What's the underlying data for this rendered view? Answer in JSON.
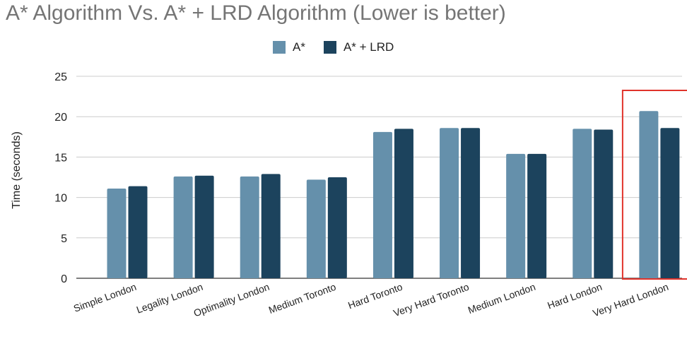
{
  "chart_data": {
    "type": "bar",
    "title": "A* Algorithm Vs. A* + LRD Algorithm (Lower is better)",
    "xlabel": "",
    "ylabel": "Time (seconds)",
    "ylim": [
      0,
      25
    ],
    "yticks": [
      0,
      5,
      10,
      15,
      20,
      25
    ],
    "grid": true,
    "legend_position": "top",
    "categories": [
      "Simple London",
      "Legality London",
      "Optimality London",
      "Medium Toronto",
      "Hard Toronto",
      "Very Hard Toronto",
      "Medium London",
      "Hard London",
      "Very Hard London"
    ],
    "series": [
      {
        "name": "A*",
        "color": "#6590ab",
        "values": [
          11.1,
          12.6,
          12.6,
          12.2,
          18.1,
          18.6,
          15.4,
          18.5,
          20.7
        ]
      },
      {
        "name": "A* + LRD",
        "color": "#1c435d",
        "values": [
          11.4,
          12.7,
          12.9,
          12.5,
          18.5,
          18.6,
          15.4,
          18.4,
          18.6
        ]
      }
    ],
    "highlight": {
      "category": "Very Hard London",
      "color": "#e0332b"
    }
  }
}
